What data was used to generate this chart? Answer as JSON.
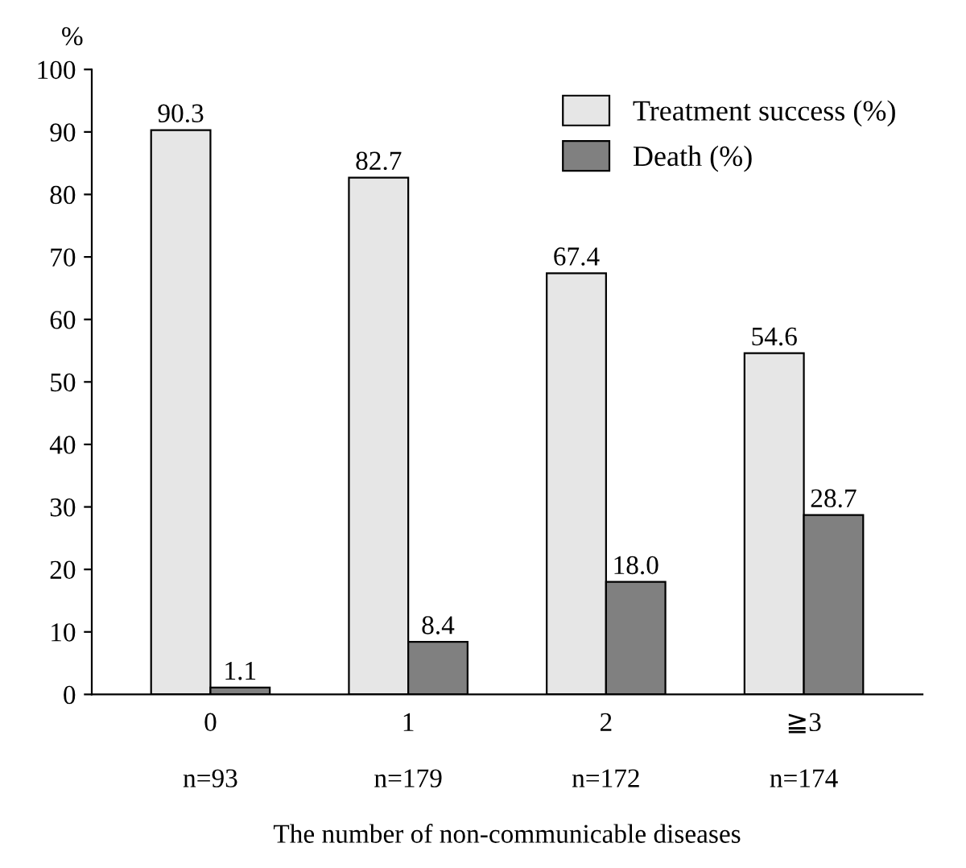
{
  "chart_data": {
    "type": "bar",
    "ylabel": "%",
    "xlabel": "The number of non-communicable diseases",
    "categories": [
      "0\n\nn=93",
      "1\n\nn=179",
      "2\n\nn=172",
      "≧3\n\nn=174"
    ],
    "series": [
      {
        "name": "Treatment success (%)",
        "color": "#e6e6e6",
        "values": [
          90.3,
          82.7,
          67.4,
          54.6
        ]
      },
      {
        "name": "Death (%)",
        "color": "#808080",
        "values": [
          1.1,
          8.4,
          18.0,
          28.7
        ]
      }
    ],
    "value_labels": [
      [
        "90.3",
        "82.7",
        "67.4",
        "54.6"
      ],
      [
        "1.1",
        "8.4",
        "18.0",
        "28.7"
      ]
    ],
    "ylim": [
      0,
      100
    ],
    "yticks": [
      0,
      10,
      20,
      30,
      40,
      50,
      60,
      70,
      80,
      90,
      100
    ],
    "grid": false,
    "legend": "top right"
  }
}
